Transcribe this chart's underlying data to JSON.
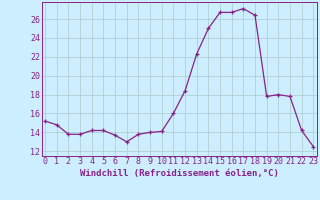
{
  "x": [
    0,
    1,
    2,
    3,
    4,
    5,
    6,
    7,
    8,
    9,
    10,
    11,
    12,
    13,
    14,
    15,
    16,
    17,
    18,
    19,
    20,
    21,
    22,
    23
  ],
  "y": [
    15.2,
    14.8,
    13.8,
    13.8,
    14.2,
    14.2,
    13.7,
    13.0,
    13.8,
    14.0,
    14.1,
    16.0,
    18.4,
    22.3,
    25.0,
    26.7,
    26.7,
    27.1,
    26.4,
    17.8,
    18.0,
    17.8,
    14.2,
    12.5
  ],
  "xlabel": "Windchill (Refroidissement éolien,°C)",
  "bg_color": "#cceeff",
  "grid_color": "#aacccc",
  "line_color": "#882288",
  "ylim_min": 11.5,
  "ylim_max": 27.8,
  "yticks": [
    12,
    14,
    16,
    18,
    20,
    22,
    24,
    26
  ],
  "xticks": [
    0,
    1,
    2,
    3,
    4,
    5,
    6,
    7,
    8,
    9,
    10,
    11,
    12,
    13,
    14,
    15,
    16,
    17,
    18,
    19,
    20,
    21,
    22,
    23
  ],
  "xlabel_fontsize": 6.5,
  "tick_fontsize": 6.0
}
